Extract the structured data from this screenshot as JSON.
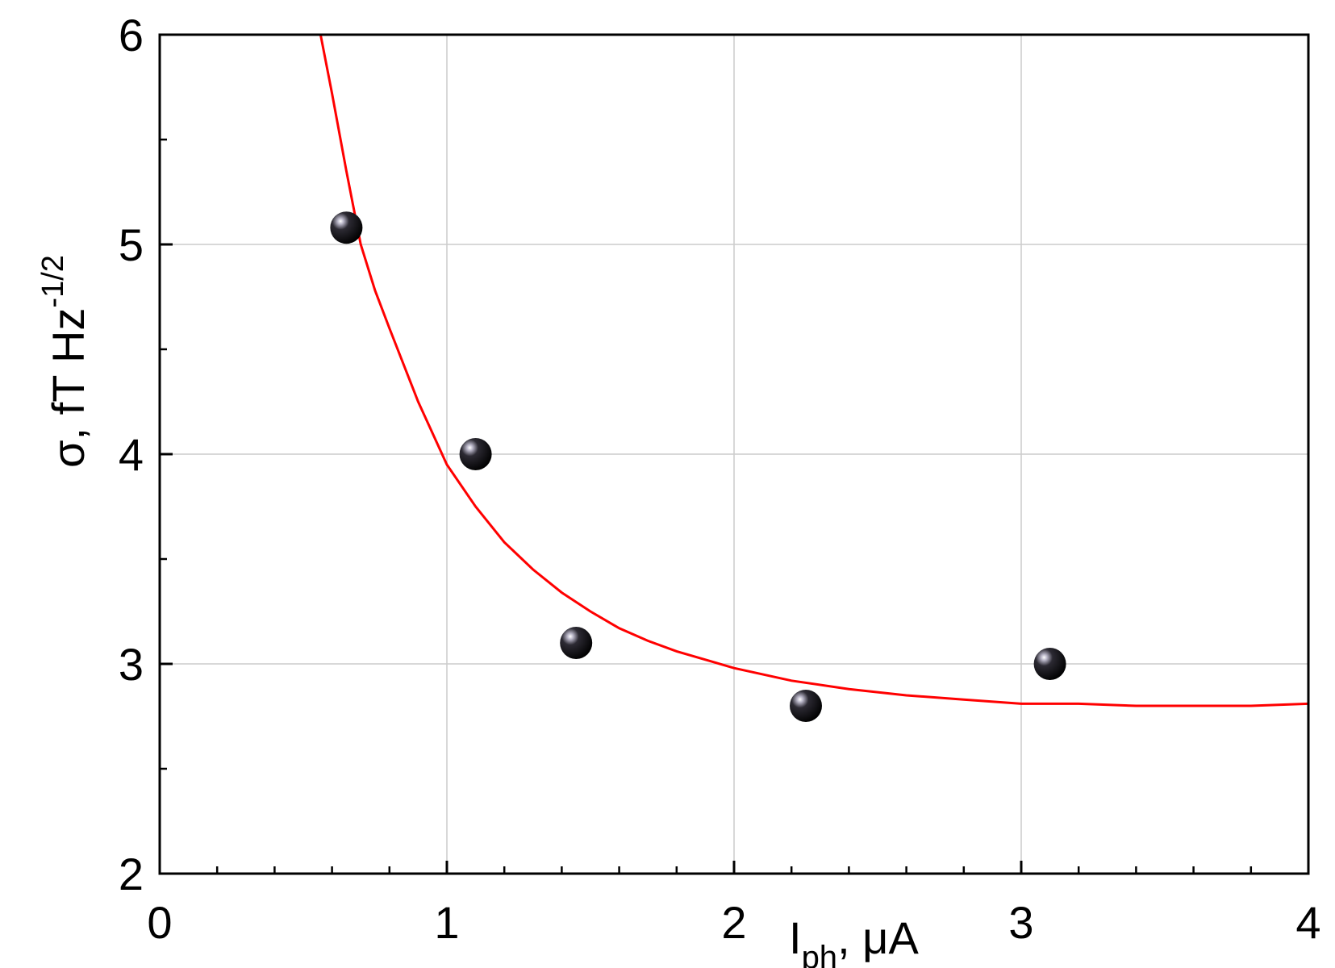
{
  "chart_data": {
    "type": "scatter",
    "xlabel": {
      "main": "I",
      "sub": "ph",
      "rest": ", μA"
    },
    "ylabel": {
      "main": "σ, fT Hz",
      "sup": "-1/2"
    },
    "xlim": [
      0,
      4
    ],
    "ylim": [
      2,
      6
    ],
    "x_ticks": [
      "0",
      "1",
      "2",
      "3",
      "4"
    ],
    "y_ticks": [
      "2",
      "3",
      "4",
      "5",
      "6"
    ],
    "grid": true,
    "series": [
      {
        "type": "scatter",
        "x": [
          0.65,
          1.1,
          1.45,
          2.25,
          3.1
        ],
        "y": [
          5.08,
          4.0,
          3.1,
          2.8,
          3.0
        ],
        "color": "#000000"
      },
      {
        "type": "line",
        "x": [
          0.56,
          0.6,
          0.65,
          0.7,
          0.75,
          0.8,
          0.9,
          1.0,
          1.1,
          1.2,
          1.3,
          1.4,
          1.5,
          1.6,
          1.7,
          1.8,
          2.0,
          2.2,
          2.4,
          2.6,
          2.8,
          3.0,
          3.2,
          3.4,
          3.6,
          3.8,
          4.0
        ],
        "y": [
          6.0,
          5.72,
          5.35,
          5.0,
          4.78,
          4.6,
          4.25,
          3.95,
          3.75,
          3.58,
          3.45,
          3.34,
          3.25,
          3.17,
          3.11,
          3.06,
          2.98,
          2.92,
          2.88,
          2.85,
          2.83,
          2.81,
          2.81,
          2.8,
          2.8,
          2.8,
          2.81
        ],
        "color": "#ff0000"
      }
    ]
  }
}
